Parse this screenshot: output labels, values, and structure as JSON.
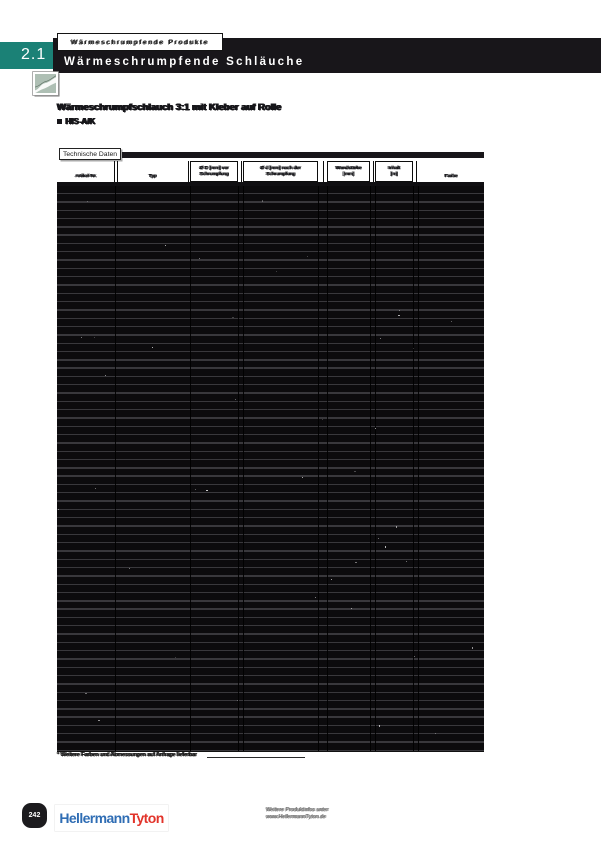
{
  "header": {
    "section_number": "2.1",
    "tab_label": "Wärmeschrumpfende Produkte",
    "title": "Wärmeschrumpfende Schläuche"
  },
  "intro": {
    "heading": "Wärmeschrumpfschlauch 3:1 mit Kleber auf Rolle",
    "bullet": "HIS-A/K"
  },
  "table": {
    "label": "Technische Daten",
    "columns": [
      {
        "line1": "Artikel-Nr.",
        "line2": ""
      },
      {
        "line1": "Typ",
        "line2": ""
      },
      {
        "line1": "Ø D [mm] vor",
        "line2": "Schrumpfung"
      },
      {
        "line1": "Ø d [mm] nach der",
        "line2": "Schrumpfung"
      },
      {
        "line1": "Wandstärke",
        "line2": "[mm]"
      },
      {
        "line1": "Inhalt",
        "line2": "[m]"
      },
      {
        "line1": "Farbe",
        "line2": ""
      }
    ],
    "row_count": 68,
    "footnote": "* Weitere Farben und Abmessungen auf Anfrage lieferbar"
  },
  "footer": {
    "page_number": "242",
    "brand_part1": "Hellermann",
    "brand_part2": "Tyton",
    "note_line1": "Weitere Produktinfos unter",
    "note_line2": "www.HellermannTyton.de"
  },
  "colors": {
    "teal": "#1b8176",
    "band_black": "#18161a",
    "row_dark": "#0c0b0d",
    "row_gap": "#39383c",
    "logo_blue": "#2f6db4",
    "logo_red": "#e2332a",
    "note_gray": "#7d7d7d"
  }
}
